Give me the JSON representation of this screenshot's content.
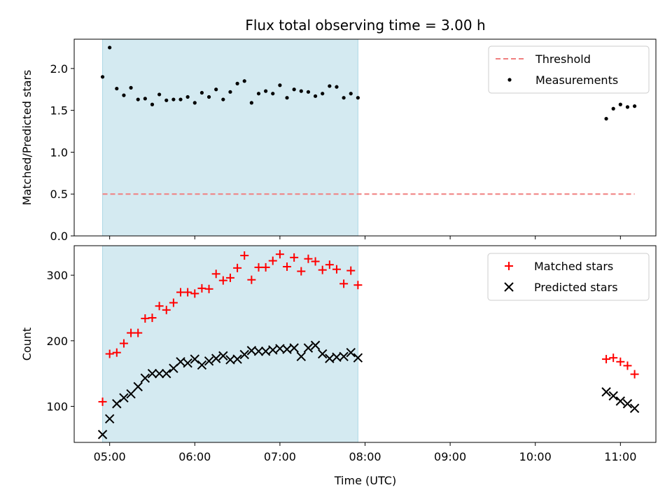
{
  "chart_data": [
    {
      "type": "scatter",
      "title": "Flux total observing time = 3.00 h",
      "xlabel": "",
      "ylabel": "Matched/Predicted stars",
      "ylim": [
        0,
        2.35
      ],
      "yticks": [
        0.0,
        0.5,
        1.0,
        1.5,
        2.0
      ],
      "ytick_labels": [
        "0.0",
        "0.5",
        "1.0",
        "1.5",
        "2.0"
      ],
      "xtick_labels_shown": false,
      "shaded_region": {
        "start": "04:55",
        "end": "07:55",
        "color": "#d4eaf1"
      },
      "legend": {
        "placement": "top-right",
        "entries": [
          "Threshold",
          "Measurements"
        ]
      },
      "series": [
        {
          "name": "Threshold",
          "kind": "dashed-line",
          "color": "#f08080",
          "x": [
            "04:55",
            "11:10"
          ],
          "y": [
            0.5,
            0.5
          ]
        },
        {
          "name": "Measurements",
          "kind": "dot",
          "color": "#000000",
          "x": [
            "04:55",
            "05:00",
            "05:05",
            "05:10",
            "05:15",
            "05:20",
            "05:25",
            "05:30",
            "05:35",
            "05:40",
            "05:45",
            "05:50",
            "05:55",
            "06:00",
            "06:05",
            "06:10",
            "06:15",
            "06:20",
            "06:25",
            "06:30",
            "06:35",
            "06:40",
            "06:45",
            "06:50",
            "06:55",
            "07:00",
            "07:05",
            "07:10",
            "07:15",
            "07:20",
            "07:25",
            "07:30",
            "07:35",
            "07:40",
            "07:45",
            "07:50",
            "07:55",
            "10:50",
            "10:55",
            "11:00",
            "11:05",
            "11:10"
          ],
          "y": [
            1.9,
            2.25,
            1.76,
            1.68,
            1.77,
            1.63,
            1.64,
            1.57,
            1.69,
            1.62,
            1.63,
            1.63,
            1.66,
            1.59,
            1.71,
            1.66,
            1.75,
            1.63,
            1.72,
            1.82,
            1.85,
            1.59,
            1.7,
            1.73,
            1.7,
            1.8,
            1.65,
            1.75,
            1.73,
            1.72,
            1.67,
            1.7,
            1.79,
            1.78,
            1.65,
            1.7,
            1.65,
            1.4,
            1.52,
            1.57,
            1.54,
            1.55
          ]
        }
      ]
    },
    {
      "type": "scatter",
      "title": "",
      "xlabel": "Time (UTC)",
      "ylabel": "Count",
      "ylim": [
        45,
        345
      ],
      "yticks": [
        100,
        200,
        300
      ],
      "ytick_labels": [
        "100",
        "200",
        "300"
      ],
      "xtick_labels": [
        "05:00",
        "06:00",
        "07:00",
        "08:00",
        "09:00",
        "10:00",
        "11:00"
      ],
      "shaded_region": {
        "start": "04:55",
        "end": "07:55",
        "color": "#d4eaf1"
      },
      "legend": {
        "placement": "top-right",
        "entries": [
          "Matched stars",
          "Predicted stars"
        ]
      },
      "series": [
        {
          "name": "Matched stars",
          "kind": "plus",
          "color": "#ff0000",
          "x": [
            "04:55",
            "05:00",
            "05:05",
            "05:10",
            "05:15",
            "05:20",
            "05:25",
            "05:30",
            "05:35",
            "05:40",
            "05:45",
            "05:50",
            "05:55",
            "06:00",
            "06:05",
            "06:10",
            "06:15",
            "06:20",
            "06:25",
            "06:30",
            "06:35",
            "06:40",
            "06:45",
            "06:50",
            "06:55",
            "07:00",
            "07:05",
            "07:10",
            "07:15",
            "07:20",
            "07:25",
            "07:30",
            "07:35",
            "07:40",
            "07:45",
            "07:50",
            "07:55",
            "10:50",
            "10:55",
            "11:00",
            "11:05",
            "11:10"
          ],
          "y": [
            107,
            180,
            182,
            196,
            212,
            212,
            234,
            235,
            253,
            247,
            258,
            274,
            274,
            272,
            280,
            279,
            302,
            292,
            296,
            311,
            330,
            293,
            312,
            312,
            322,
            332,
            313,
            327,
            306,
            325,
            321,
            308,
            316,
            309,
            287,
            307,
            285,
            172,
            174,
            168,
            162,
            149
          ]
        },
        {
          "name": "Predicted stars",
          "kind": "cross",
          "color": "#000000",
          "x": [
            "04:55",
            "05:00",
            "05:05",
            "05:10",
            "05:15",
            "05:20",
            "05:25",
            "05:30",
            "05:35",
            "05:40",
            "05:45",
            "05:50",
            "05:55",
            "06:00",
            "06:05",
            "06:10",
            "06:15",
            "06:20",
            "06:25",
            "06:30",
            "06:35",
            "06:40",
            "06:45",
            "06:50",
            "06:55",
            "07:00",
            "07:05",
            "07:10",
            "07:15",
            "07:20",
            "07:25",
            "07:30",
            "07:35",
            "07:40",
            "07:45",
            "07:50",
            "07:55",
            "10:50",
            "10:55",
            "11:00",
            "11:05",
            "11:10"
          ],
          "y": [
            57,
            81,
            104,
            113,
            119,
            130,
            143,
            150,
            150,
            150,
            158,
            168,
            166,
            172,
            163,
            169,
            173,
            177,
            171,
            172,
            179,
            185,
            184,
            184,
            186,
            188,
            187,
            189,
            176,
            189,
            193,
            180,
            173,
            175,
            176,
            182,
            174,
            122,
            116,
            108,
            104,
            97
          ]
        }
      ]
    }
  ]
}
